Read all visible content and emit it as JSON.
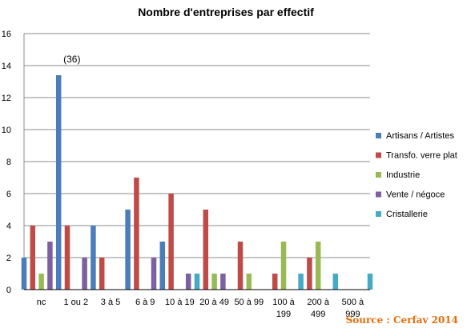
{
  "chart_data": {
    "type": "bar",
    "title": "Nombre d'entreprises par effectif",
    "categories": [
      [
        "nc"
      ],
      [
        "1 ou 2"
      ],
      [
        "3 à 5"
      ],
      [
        "6 à 9"
      ],
      [
        "10 à 19"
      ],
      [
        "20 à 49"
      ],
      [
        "50 à 99"
      ],
      [
        "100 à",
        "199"
      ],
      [
        "200 à",
        "499"
      ],
      [
        "500 à",
        "999"
      ]
    ],
    "series": [
      {
        "name": "Artisans / Artistes",
        "color": "#4a7ebb",
        "values": [
          2,
          13.4,
          4,
          5,
          3,
          0,
          0,
          0,
          0,
          0
        ]
      },
      {
        "name": "Transfo. verre plat",
        "color": "#be4b48",
        "values": [
          4,
          4,
          2,
          7,
          6,
          5,
          3,
          1,
          2,
          0
        ]
      },
      {
        "name": "Industrie",
        "color": "#98b954",
        "values": [
          1,
          0,
          0,
          0,
          0,
          1,
          1,
          3,
          3,
          0
        ]
      },
      {
        "name": "Vente / négoce",
        "color": "#7d60a0",
        "values": [
          3,
          2,
          0,
          2,
          1,
          1,
          0,
          0,
          0,
          0
        ]
      },
      {
        "name": "Cristallerie",
        "color": "#46aac5",
        "values": [
          0,
          0,
          0,
          1,
          1,
          0,
          0,
          1,
          1,
          1
        ]
      }
    ],
    "ylim": [
      0,
      16
    ],
    "yticks": [
      0,
      2,
      4,
      6,
      8,
      10,
      12,
      14,
      16
    ],
    "grid": true,
    "legend": "right",
    "annotations": [
      {
        "text": "(36)",
        "category": "1 ou 2"
      }
    ],
    "source": "Source : Cerfav 2014"
  }
}
